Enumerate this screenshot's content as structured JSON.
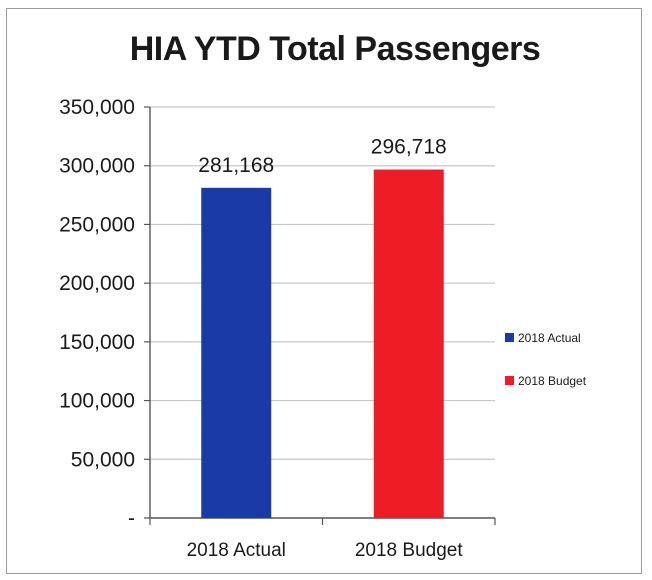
{
  "chart_data": {
    "type": "bar",
    "title": "HIA YTD Total Passengers",
    "xlabel": "",
    "ylabel": "",
    "categories": [
      "2018 Actual",
      "2018 Budget"
    ],
    "series": [
      {
        "name": "2018 Actual",
        "values": [
          281168,
          null
        ],
        "color": "#1a3aa8"
      },
      {
        "name": "2018 Budget",
        "values": [
          null,
          296718
        ],
        "color": "#ee1c24"
      }
    ],
    "values": [
      281168,
      296718
    ],
    "data_labels": [
      "281,168",
      "296,718"
    ],
    "ylim": [
      0,
      350000
    ],
    "yticks": [
      0,
      50000,
      100000,
      150000,
      200000,
      250000,
      300000,
      350000
    ],
    "ytick_labels": [
      "-",
      "50,000",
      "100,000",
      "150,000",
      "200,000",
      "250,000",
      "300,000",
      "350,000"
    ],
    "grid": true,
    "legend": {
      "placement": "right",
      "entries": [
        "2018 Actual",
        "2018 Budget"
      ]
    }
  }
}
